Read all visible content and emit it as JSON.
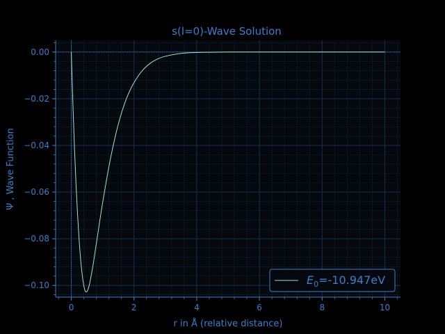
{
  "colors": {
    "background": "#000000",
    "plot_background": "#05080c",
    "text": "#3a7fd0",
    "axis": "#3a7fd0",
    "major_grid": "#15314f",
    "minor_grid": "#0c1e31",
    "curve": "#9fe6cf",
    "zero_lines": "#2f6fbd"
  },
  "chart_data": {
    "type": "line",
    "title": "s(l=0)-Wave Solution",
    "xlabel": "r in Å (relative distance)",
    "ylabel": "Ψ , Wave Function",
    "xlim": [
      -0.5,
      10.5
    ],
    "ylim": [
      -0.105,
      0.005
    ],
    "xticks": [
      0,
      2,
      4,
      6,
      8,
      10
    ],
    "yticks": [
      0.0,
      -0.02,
      -0.04,
      -0.06,
      -0.08,
      -0.1
    ],
    "xtick_labels": [
      "0",
      "2",
      "4",
      "6",
      "8",
      "10"
    ],
    "ytick_labels": [
      "0.00",
      "−0.02",
      "−0.04",
      "−0.06",
      "−0.08",
      "−0.10"
    ],
    "grid": true,
    "minor_grid": true,
    "legend_position": "lower-right",
    "reference_lines": {
      "x": 0,
      "y": 0
    },
    "series": [
      {
        "name_symbol": "E",
        "name_subscript": "0",
        "name_value": "=-10.947eV",
        "x": [
          0.0,
          0.05,
          0.1,
          0.15,
          0.2,
          0.25,
          0.3,
          0.35,
          0.4,
          0.45,
          0.5,
          0.55,
          0.6,
          0.7,
          0.8,
          0.9,
          1.0,
          1.2,
          1.4,
          1.6,
          1.8,
          2.0,
          2.25,
          2.5,
          2.75,
          3.0,
          3.5,
          4.0,
          4.5,
          5.0,
          5.5,
          6.0,
          7.0,
          8.0,
          9.0,
          10.0
        ],
        "y": [
          0.0,
          -0.0218,
          -0.0406,
          -0.0564,
          -0.0697,
          -0.0806,
          -0.0892,
          -0.0957,
          -0.1001,
          -0.1025,
          -0.1026,
          -0.101,
          -0.0982,
          -0.0907,
          -0.082,
          -0.0731,
          -0.0645,
          -0.0491,
          -0.0363,
          -0.0262,
          -0.0186,
          -0.0131,
          -0.0082,
          -0.005,
          -0.003,
          -0.0018,
          -0.0006,
          -0.0002,
          -0.0001,
          0.0,
          0.0,
          0.0,
          0.0,
          0.0,
          0.0,
          0.0
        ]
      }
    ]
  }
}
